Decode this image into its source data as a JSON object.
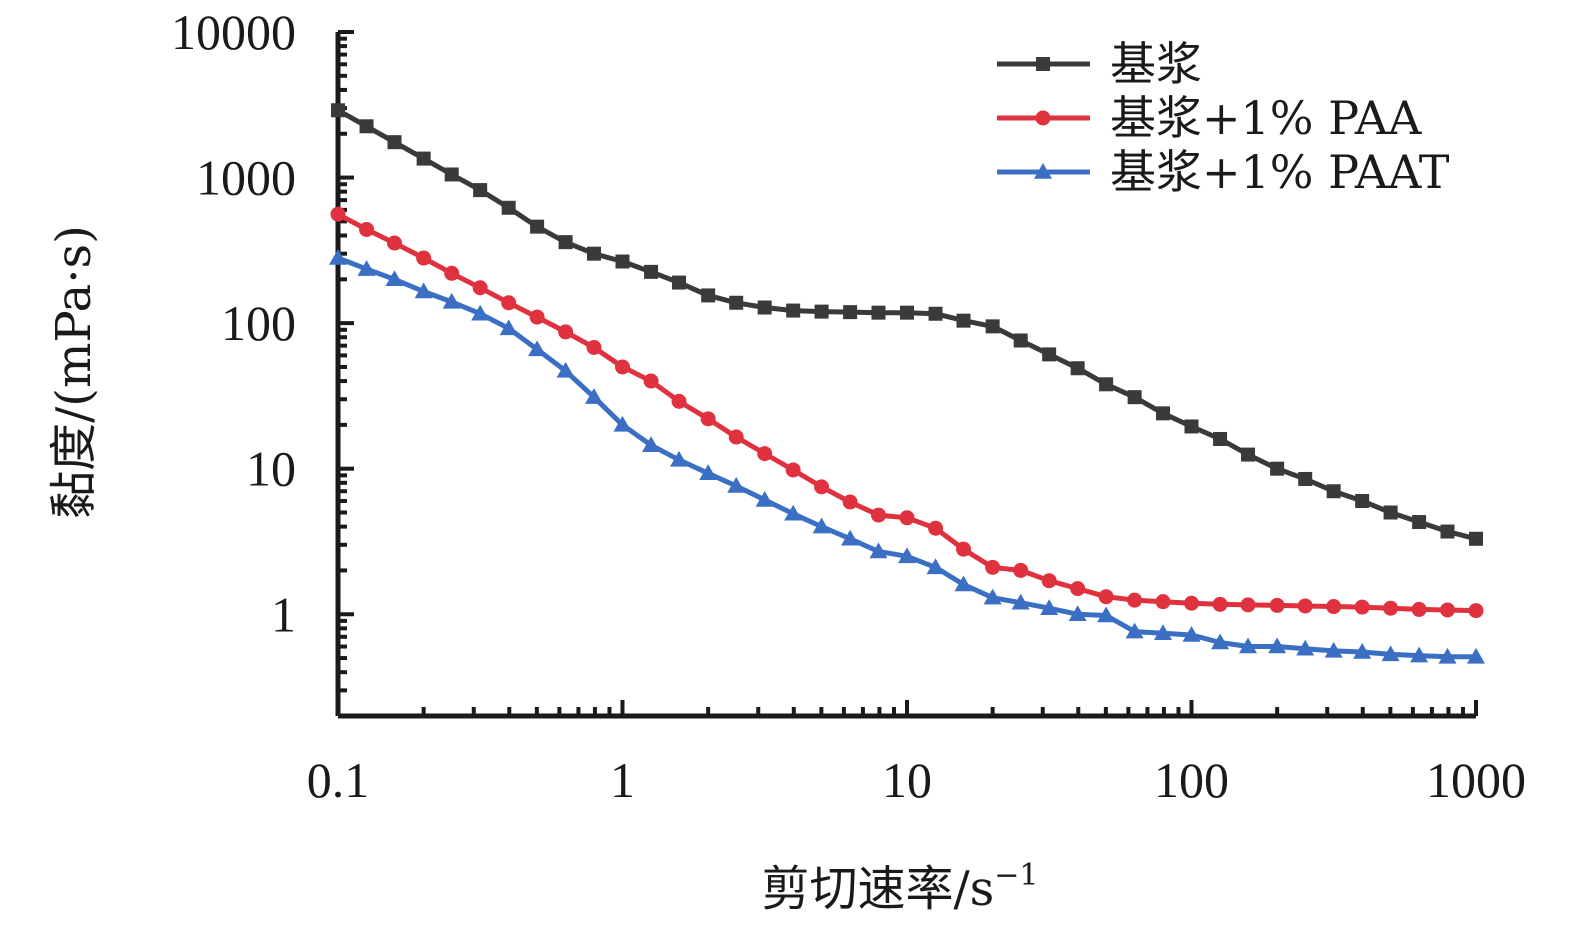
{
  "chart_data": {
    "type": "line",
    "xscale": "log",
    "yscale": "log",
    "xlim": [
      0.1,
      1000
    ],
    "ylim": [
      0.2,
      10000
    ],
    "xlabel": "剪切速率/s",
    "xlabel_sup": "−1",
    "ylabel": "黏度/(mPa·s)",
    "xticks": [
      {
        "value": 0.1,
        "label": "0.1"
      },
      {
        "value": 1,
        "label": "1"
      },
      {
        "value": 10,
        "label": "10"
      },
      {
        "value": 100,
        "label": "100"
      },
      {
        "value": 1000,
        "label": "1000"
      }
    ],
    "yticks": [
      {
        "value": 1,
        "label": "1"
      },
      {
        "value": 10,
        "label": "10"
      },
      {
        "value": 100,
        "label": "100"
      },
      {
        "value": 1000,
        "label": "1000"
      },
      {
        "value": 10000,
        "label": "10000"
      }
    ],
    "legend_position": "top-right",
    "grid": false,
    "x": [
      0.1,
      0.126,
      0.158,
      0.2,
      0.251,
      0.316,
      0.398,
      0.501,
      0.631,
      0.794,
      1,
      1.26,
      1.58,
      2,
      2.51,
      3.16,
      3.98,
      5.01,
      6.31,
      7.94,
      10,
      12.6,
      15.8,
      20,
      25.1,
      31.6,
      39.8,
      50.1,
      63.1,
      79.4,
      100,
      126,
      158,
      200,
      251,
      316,
      398,
      501,
      631,
      794,
      1000
    ],
    "series": [
      {
        "name": "基浆",
        "color": "#3a3a3c",
        "marker": "square",
        "values": [
          2900,
          2250,
          1750,
          1350,
          1050,
          820,
          620,
          460,
          360,
          300,
          265,
          225,
          190,
          155,
          138,
          128,
          122,
          120,
          119,
          118,
          118,
          116,
          104,
          95,
          76,
          61,
          49,
          38,
          31,
          24,
          19.5,
          16,
          12.5,
          10,
          8.5,
          7,
          6,
          5,
          4.3,
          3.7,
          3.3
        ]
      },
      {
        "name": "基浆+1% PAA",
        "color": "#e0313f",
        "marker": "circle",
        "values": [
          560,
          440,
          355,
          280,
          220,
          175,
          138,
          110,
          87,
          68,
          50,
          40,
          29,
          22,
          16.5,
          12.7,
          9.8,
          7.5,
          5.9,
          4.8,
          4.6,
          3.9,
          2.8,
          2.1,
          2.0,
          1.7,
          1.5,
          1.32,
          1.25,
          1.22,
          1.19,
          1.17,
          1.16,
          1.15,
          1.14,
          1.13,
          1.12,
          1.1,
          1.08,
          1.07,
          1.06
        ]
      },
      {
        "name": "基浆+1% PAAT",
        "color": "#3a6fc4",
        "marker": "triangle",
        "values": [
          280,
          235,
          200,
          165,
          140,
          116,
          92,
          66,
          47,
          31,
          20,
          14.5,
          11.5,
          9.3,
          7.6,
          6.1,
          4.9,
          4.0,
          3.3,
          2.7,
          2.5,
          2.1,
          1.6,
          1.3,
          1.2,
          1.1,
          1.0,
          0.98,
          0.76,
          0.74,
          0.72,
          0.64,
          0.6,
          0.6,
          0.58,
          0.56,
          0.55,
          0.53,
          0.52,
          0.51,
          0.51
        ]
      }
    ]
  }
}
